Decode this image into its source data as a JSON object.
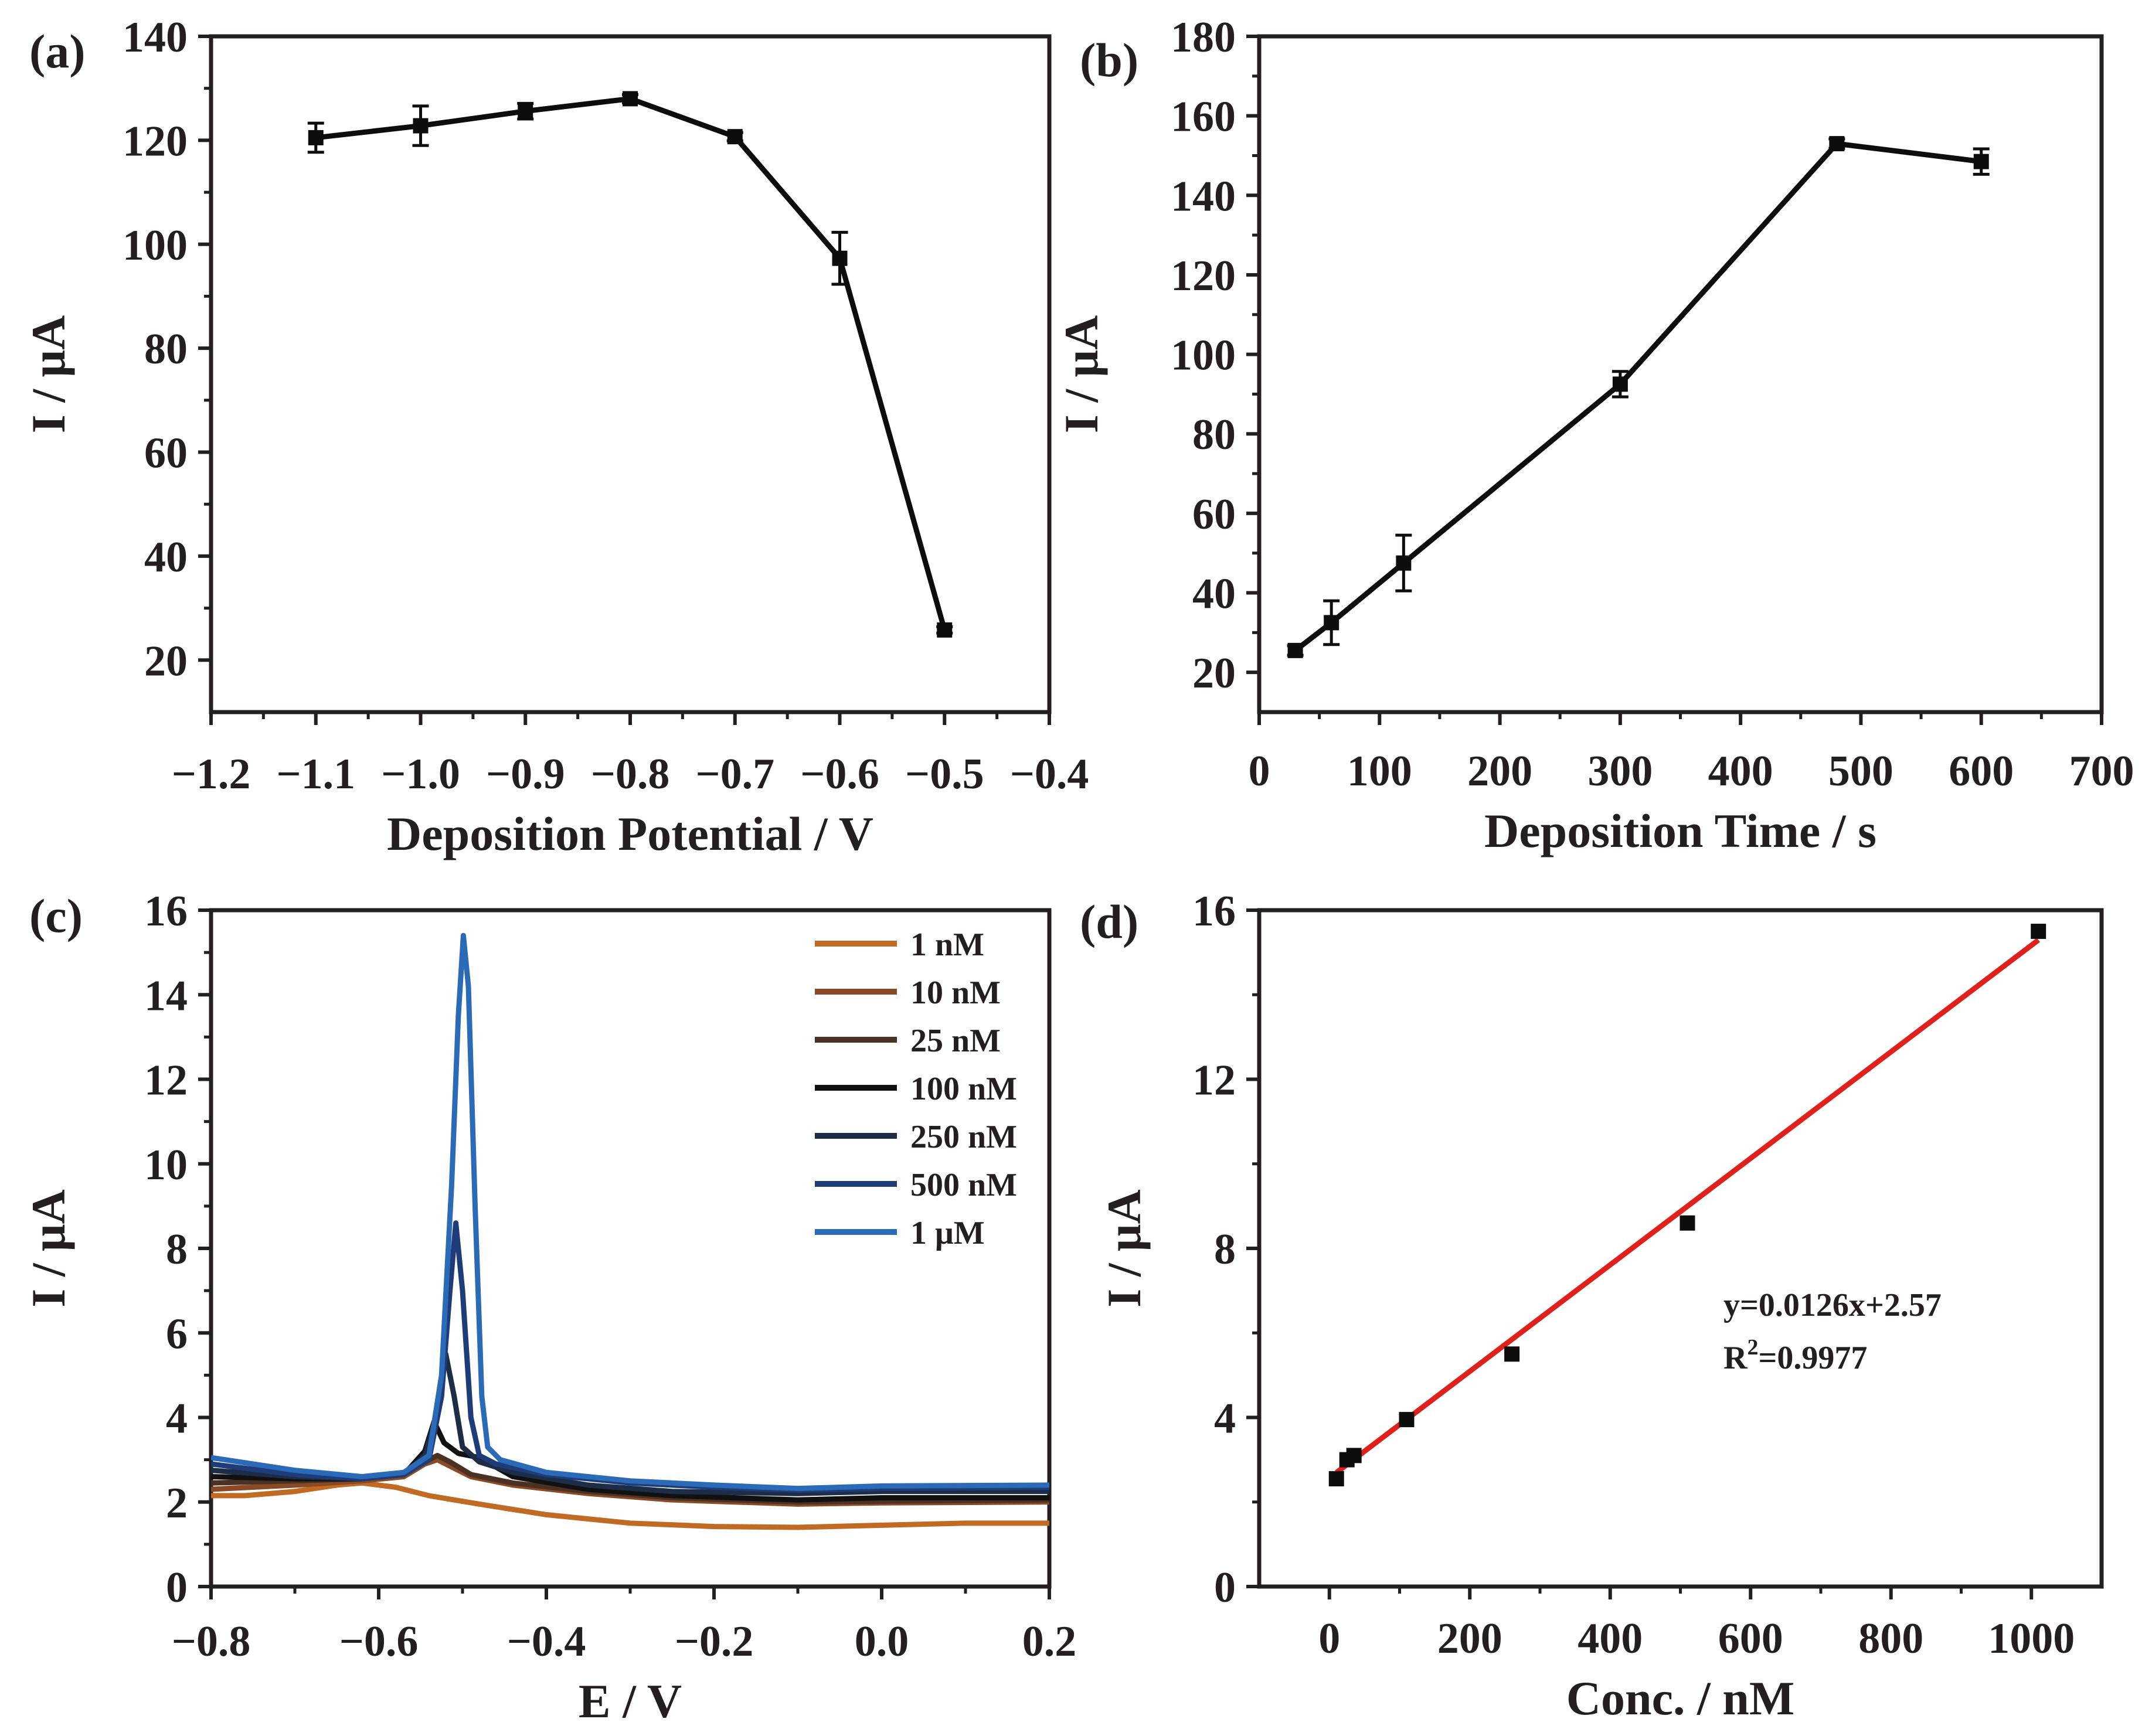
{
  "figure": {
    "panels": [
      "(a)",
      "(b)",
      "(c)",
      "(d)"
    ]
  },
  "colors": {
    "axis": "#231f20",
    "line": "#0d0d0d",
    "fit": "#e0201b",
    "series_c": [
      "#c06a24",
      "#8a4a26",
      "#4a3123",
      "#111111",
      "#1d2d48",
      "#1e3d78",
      "#2a6ab6"
    ]
  },
  "chart_data": [
    {
      "id": "a",
      "panel_label": "(a)",
      "type": "line",
      "title": "",
      "xlabel": "Deposition Potential / V",
      "ylabel": "I / μA",
      "xlim": [
        -1.2,
        -0.4
      ],
      "ylim": [
        10,
        140
      ],
      "xticks": [
        -1.2,
        -1.1,
        -1.0,
        -0.9,
        -0.8,
        -0.7,
        -0.6,
        -0.5,
        -0.4
      ],
      "xtick_labels": [
        "−1.2",
        "−1.1",
        "−1.0",
        "−0.9",
        "−0.8",
        "−0.7",
        "−0.6",
        "−0.5",
        "−0.4"
      ],
      "yticks": [
        20,
        40,
        60,
        80,
        100,
        120,
        140
      ],
      "ytick_labels": [
        "20",
        "40",
        "60",
        "80",
        "100",
        "120",
        "140"
      ],
      "x": [
        -1.1,
        -1.0,
        -0.9,
        -0.8,
        -0.7,
        -0.6,
        -0.5
      ],
      "y": [
        120.5,
        122.8,
        125.6,
        128.0,
        120.7,
        97.3,
        25.8
      ],
      "yerr": [
        2.8,
        3.8,
        1.5,
        0.8,
        0.8,
        5.0,
        0.6
      ],
      "grid": false
    },
    {
      "id": "b",
      "panel_label": "(b)",
      "type": "line",
      "title": "",
      "xlabel": "Deposition Time / s",
      "ylabel": "I / μA",
      "xlim": [
        0,
        700
      ],
      "ylim": [
        10,
        180
      ],
      "xticks": [
        0,
        100,
        200,
        300,
        400,
        500,
        600,
        700
      ],
      "xtick_labels": [
        "0",
        "100",
        "200",
        "300",
        "400",
        "500",
        "600",
        "700"
      ],
      "yticks": [
        20,
        40,
        60,
        80,
        100,
        120,
        140,
        160,
        180
      ],
      "ytick_labels": [
        "20",
        "40",
        "60",
        "80",
        "100",
        "120",
        "140",
        "160",
        "180"
      ],
      "x": [
        30,
        60,
        120,
        300,
        480,
        600
      ],
      "y": [
        25.5,
        32.5,
        47.5,
        92.5,
        153.0,
        148.5
      ],
      "yerr": [
        1.2,
        5.5,
        7.0,
        3.2,
        1.2,
        3.2
      ],
      "grid": false
    },
    {
      "id": "c",
      "panel_label": "(c)",
      "type": "line",
      "title": "",
      "xlabel": "E / V",
      "ylabel": "I / μA",
      "xlim": [
        -0.8,
        0.2
      ],
      "ylim": [
        0,
        16
      ],
      "xticks": [
        -0.8,
        -0.6,
        -0.4,
        -0.2,
        0.0,
        0.2
      ],
      "xtick_labels": [
        "−0.8",
        "−0.6",
        "−0.4",
        "−0.2",
        "0.0",
        "0.2"
      ],
      "yticks": [
        0,
        2,
        4,
        6,
        8,
        10,
        12,
        14,
        16
      ],
      "ytick_labels": [
        "0",
        "2",
        "4",
        "6",
        "8",
        "10",
        "12",
        "14",
        "16"
      ],
      "legend_position": "top-right",
      "series": [
        {
          "name": "1 nM",
          "points": [
            [
              -0.8,
              2.15
            ],
            [
              -0.76,
              2.15
            ],
            [
              -0.7,
              2.25
            ],
            [
              -0.65,
              2.4
            ],
            [
              -0.62,
              2.45
            ],
            [
              -0.58,
              2.35
            ],
            [
              -0.54,
              2.15
            ],
            [
              -0.48,
              1.95
            ],
            [
              -0.4,
              1.7
            ],
            [
              -0.3,
              1.5
            ],
            [
              -0.2,
              1.42
            ],
            [
              -0.1,
              1.4
            ],
            [
              0.0,
              1.45
            ],
            [
              0.1,
              1.5
            ],
            [
              0.2,
              1.5
            ]
          ]
        },
        {
          "name": "10 nM",
          "points": [
            [
              -0.8,
              2.3
            ],
            [
              -0.7,
              2.4
            ],
            [
              -0.62,
              2.5
            ],
            [
              -0.57,
              2.6
            ],
            [
              -0.545,
              2.9
            ],
            [
              -0.53,
              3.0
            ],
            [
              -0.515,
              2.85
            ],
            [
              -0.49,
              2.6
            ],
            [
              -0.44,
              2.4
            ],
            [
              -0.35,
              2.2
            ],
            [
              -0.25,
              2.05
            ],
            [
              -0.1,
              1.95
            ],
            [
              0.0,
              1.98
            ],
            [
              0.2,
              2.0
            ]
          ]
        },
        {
          "name": "25 nM",
          "points": [
            [
              -0.8,
              2.45
            ],
            [
              -0.7,
              2.5
            ],
            [
              -0.62,
              2.55
            ],
            [
              -0.57,
              2.65
            ],
            [
              -0.545,
              2.95
            ],
            [
              -0.53,
              3.1
            ],
            [
              -0.515,
              2.95
            ],
            [
              -0.49,
              2.65
            ],
            [
              -0.44,
              2.45
            ],
            [
              -0.35,
              2.25
            ],
            [
              -0.25,
              2.1
            ],
            [
              -0.1,
              2.0
            ],
            [
              0.0,
              2.02
            ],
            [
              0.2,
              2.05
            ]
          ]
        },
        {
          "name": "100 nM",
          "points": [
            [
              -0.8,
              2.6
            ],
            [
              -0.7,
              2.55
            ],
            [
              -0.62,
              2.55
            ],
            [
              -0.57,
              2.65
            ],
            [
              -0.545,
              3.2
            ],
            [
              -0.534,
              3.9
            ],
            [
              -0.522,
              3.4
            ],
            [
              -0.505,
              3.15
            ],
            [
              -0.48,
              3.05
            ],
            [
              -0.44,
              2.6
            ],
            [
              -0.35,
              2.3
            ],
            [
              -0.25,
              2.15
            ],
            [
              -0.1,
              2.05
            ],
            [
              0.0,
              2.1
            ],
            [
              0.2,
              2.1
            ]
          ]
        },
        {
          "name": "250 nM",
          "points": [
            [
              -0.8,
              2.75
            ],
            [
              -0.7,
              2.6
            ],
            [
              -0.62,
              2.55
            ],
            [
              -0.57,
              2.65
            ],
            [
              -0.545,
              3.1
            ],
            [
              -0.53,
              4.1
            ],
            [
              -0.52,
              5.5
            ],
            [
              -0.51,
              4.5
            ],
            [
              -0.5,
              3.3
            ],
            [
              -0.48,
              2.95
            ],
            [
              -0.44,
              2.7
            ],
            [
              -0.35,
              2.4
            ],
            [
              -0.25,
              2.25
            ],
            [
              -0.1,
              2.2
            ],
            [
              0.0,
              2.25
            ],
            [
              0.2,
              2.25
            ]
          ]
        },
        {
          "name": "500 nM",
          "points": [
            [
              -0.8,
              2.9
            ],
            [
              -0.7,
              2.65
            ],
            [
              -0.62,
              2.55
            ],
            [
              -0.57,
              2.65
            ],
            [
              -0.54,
              3.0
            ],
            [
              -0.525,
              4.5
            ],
            [
              -0.515,
              7.0
            ],
            [
              -0.508,
              8.6
            ],
            [
              -0.5,
              7.0
            ],
            [
              -0.49,
              4.0
            ],
            [
              -0.48,
              3.1
            ],
            [
              -0.46,
              2.9
            ],
            [
              -0.4,
              2.65
            ],
            [
              -0.3,
              2.45
            ],
            [
              -0.2,
              2.35
            ],
            [
              -0.1,
              2.28
            ],
            [
              0.0,
              2.32
            ],
            [
              0.2,
              2.35
            ]
          ]
        },
        {
          "name": "1 μM",
          "points": [
            [
              -0.8,
              3.05
            ],
            [
              -0.7,
              2.75
            ],
            [
              -0.62,
              2.6
            ],
            [
              -0.57,
              2.7
            ],
            [
              -0.54,
              3.1
            ],
            [
              -0.525,
              5.0
            ],
            [
              -0.513,
              9.5
            ],
            [
              -0.505,
              13.5
            ],
            [
              -0.499,
              15.4
            ],
            [
              -0.493,
              14.2
            ],
            [
              -0.485,
              9.0
            ],
            [
              -0.477,
              4.5
            ],
            [
              -0.47,
              3.3
            ],
            [
              -0.455,
              3.0
            ],
            [
              -0.4,
              2.7
            ],
            [
              -0.3,
              2.5
            ],
            [
              -0.2,
              2.4
            ],
            [
              -0.1,
              2.32
            ],
            [
              0.0,
              2.38
            ],
            [
              0.2,
              2.4
            ]
          ]
        }
      ],
      "grid": false
    },
    {
      "id": "d",
      "panel_label": "(d)",
      "type": "scatter",
      "title": "",
      "xlabel": "Conc. / nM",
      "ylabel": "I / μA",
      "xlim": [
        -100,
        1100
      ],
      "ylim": [
        0,
        16
      ],
      "xticks": [
        0,
        200,
        400,
        600,
        800,
        1000
      ],
      "xtick_labels": [
        "0",
        "200",
        "400",
        "600",
        "800",
        "1000"
      ],
      "yticks": [
        0,
        4,
        8,
        12,
        16
      ],
      "ytick_labels": [
        "0",
        "4",
        "8",
        "12",
        "16"
      ],
      "x": [
        10,
        25,
        35,
        110,
        260,
        510,
        1010
      ],
      "y": [
        2.55,
        3.0,
        3.1,
        3.95,
        5.5,
        8.6,
        15.5
      ],
      "fit": {
        "slope": 0.0126,
        "intercept": 2.57,
        "x_range": [
          10,
          1010
        ]
      },
      "annotation_equation": "y=0.0126x+2.57",
      "annotation_r2_prefix": "R",
      "annotation_r2_sup": "2",
      "annotation_r2_value": "=0.9977",
      "grid": false
    }
  ]
}
